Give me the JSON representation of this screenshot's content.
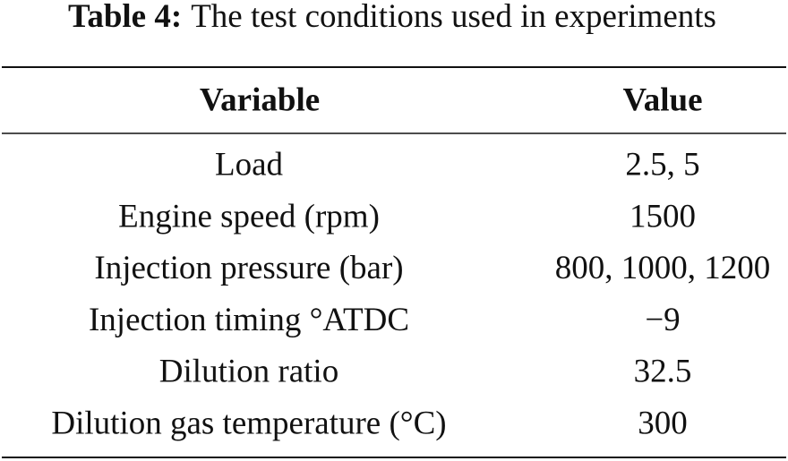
{
  "caption": {
    "label": "Table 4:",
    "text": "The test conditions used in experiments"
  },
  "table": {
    "header": [
      "Variable",
      "Value"
    ],
    "rows": [
      [
        "Load",
        "2.5, 5"
      ],
      [
        "Engine speed (rpm)",
        "1500"
      ],
      [
        "Injection pressure (bar)",
        "800, 1000, 1200"
      ],
      [
        "Injection timing °ATDC",
        "−9"
      ],
      [
        "Dilution ratio",
        "32.5"
      ],
      [
        "Dilution gas temperature (°C)",
        "300"
      ]
    ]
  }
}
